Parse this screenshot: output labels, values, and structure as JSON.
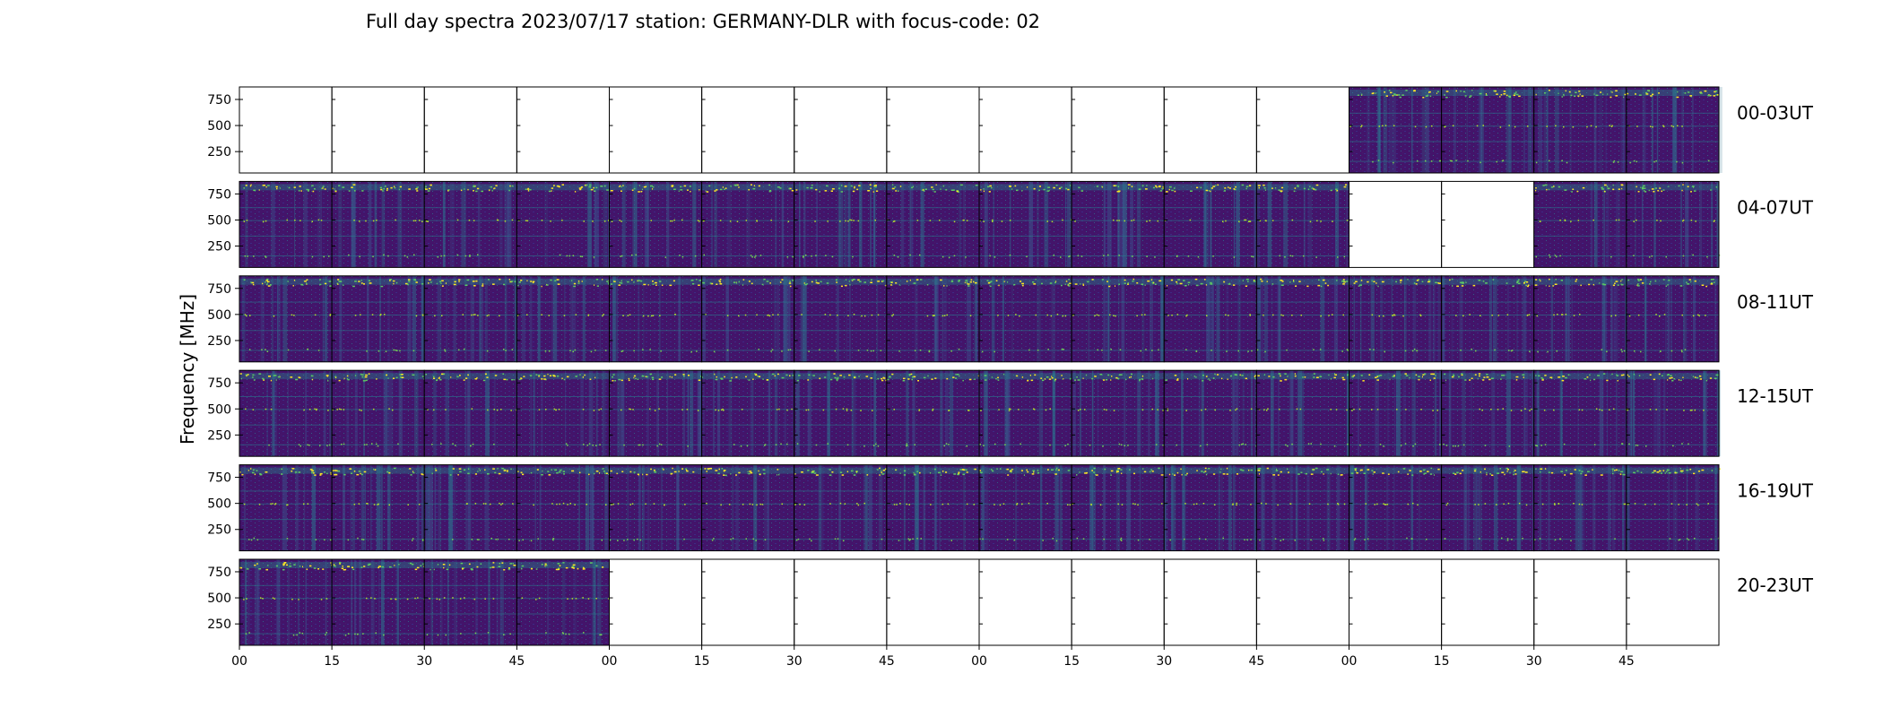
{
  "chart_data": {
    "type": "heatmap",
    "title": "Full day spectra 2023/07/17 station: GERMANY-DLR with focus-code: 02",
    "ylabel": "Frequency [MHz]",
    "xlabel": "",
    "ylim": [
      45,
      870
    ],
    "y_ticks": [
      "250",
      "500",
      "750"
    ],
    "y_tick_values": [
      250,
      500,
      750
    ],
    "x_ticks": [
      "00",
      "15",
      "30",
      "45",
      "00",
      "15",
      "30",
      "45",
      "00",
      "15",
      "30",
      "45",
      "00",
      "15",
      "30",
      "45"
    ],
    "colormap": "viridis",
    "grid": false,
    "legend": "none",
    "rows": [
      {
        "label": "00-03UT",
        "panels": [
          0,
          0,
          0,
          0,
          0,
          0,
          0,
          0,
          0,
          0,
          0,
          0,
          1,
          1,
          1,
          1
        ]
      },
      {
        "label": "04-07UT",
        "panels": [
          1,
          1,
          1,
          1,
          1,
          1,
          1,
          1,
          1,
          1,
          1,
          1,
          0,
          0,
          1,
          1
        ]
      },
      {
        "label": "08-11UT",
        "panels": [
          1,
          1,
          1,
          1,
          1,
          1,
          1,
          1,
          1,
          1,
          1,
          1,
          1,
          1,
          1,
          1
        ]
      },
      {
        "label": "12-15UT",
        "panels": [
          1,
          1,
          1,
          1,
          1,
          1,
          1,
          1,
          1,
          1,
          1,
          1,
          1,
          1,
          1,
          1
        ]
      },
      {
        "label": "16-19UT",
        "panels": [
          1,
          1,
          1,
          1,
          1,
          1,
          1,
          1,
          1,
          1,
          1,
          1,
          1,
          1,
          1,
          1
        ]
      },
      {
        "label": "20-23UT",
        "panels": [
          1,
          1,
          1,
          1,
          0,
          0,
          0,
          0,
          0,
          0,
          0,
          0,
          0,
          0,
          0,
          0
        ]
      }
    ]
  }
}
